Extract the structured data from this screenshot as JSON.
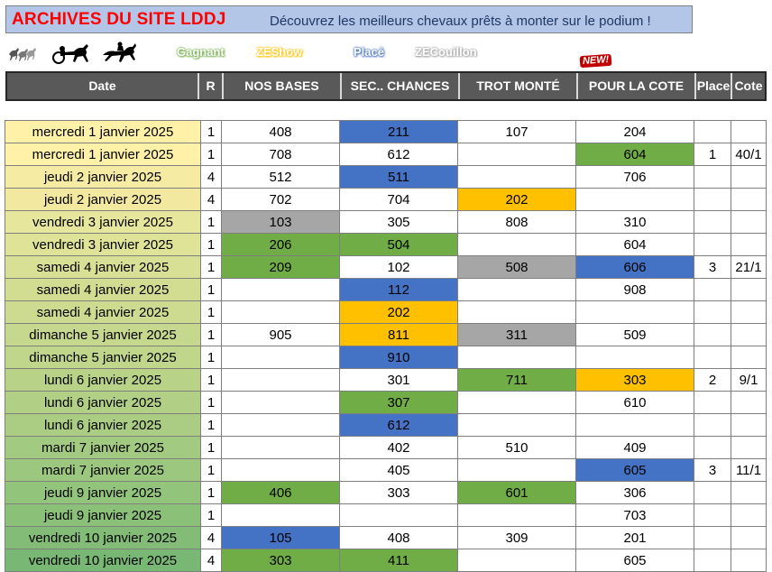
{
  "header": {
    "title": "ARCHIVES DU SITE LDDJ",
    "tagline": "Découvrez les meilleurs chevaux prêts à monter sur le podium !"
  },
  "legend": {
    "gagnant": "Gagnant",
    "zeshow": "ZEShow",
    "place": "Placé",
    "zecouillon": "ZECouillon",
    "new_badge": "NEW!"
  },
  "icons": [
    "horse-group-icon",
    "sulky-horse-icon",
    "jockey-horse-icon"
  ],
  "colors": {
    "green": "#70ad47",
    "blue": "#4472c4",
    "orange": "#ffc000",
    "gray": "#a6a6a6",
    "title_red": "#ff0000",
    "header_bg": "#b4c6e7",
    "table_header_bg": "#595959"
  },
  "table": {
    "columns": [
      "Date",
      "R",
      "NOS BASES",
      "SEC.. CHANCES",
      "TROT MONTÉ",
      "POUR LA COTE",
      "Place",
      "Cote"
    ],
    "rows": [
      {
        "date": "mercredi 1 janvier 2025",
        "r": "1",
        "bases": "408",
        "sec": "211",
        "trot": "107",
        "cote": "204",
        "place": "",
        "odds": "",
        "bg": "#fff2a8",
        "c": [
          "",
          "blue",
          "",
          ""
        ]
      },
      {
        "date": "mercredi 1 janvier 2025",
        "r": "1",
        "bases": "708",
        "sec": "612",
        "trot": "",
        "cote": "604",
        "place": "1",
        "odds": "40/1",
        "bg": "#fff2a8",
        "c": [
          "",
          "",
          "",
          "green"
        ]
      },
      {
        "date": "jeudi 2 janvier 2025",
        "r": "4",
        "bases": "512",
        "sec": "511",
        "trot": "",
        "cote": "706",
        "place": "",
        "odds": "",
        "bg": "#f5eba3",
        "c": [
          "",
          "blue",
          "",
          ""
        ]
      },
      {
        "date": "jeudi 2 janvier 2025",
        "r": "4",
        "bases": "702",
        "sec": "704",
        "trot": "202",
        "cote": "",
        "place": "",
        "odds": "",
        "bg": "#f2e8a0",
        "c": [
          "",
          "",
          "orange",
          ""
        ]
      },
      {
        "date": "vendredi 3 janvier 2025",
        "r": "1",
        "bases": "103",
        "sec": "305",
        "trot": "808",
        "cote": "310",
        "place": "",
        "odds": "",
        "bg": "#e6e69c",
        "c": [
          "gray",
          "",
          "",
          ""
        ]
      },
      {
        "date": "vendredi 3 janvier 2025",
        "r": "1",
        "bases": "206",
        "sec": "504",
        "trot": "",
        "cote": "604",
        "place": "",
        "odds": "",
        "bg": "#dfe398",
        "c": [
          "green",
          "green",
          "",
          ""
        ]
      },
      {
        "date": "samedi 4 janvier 2025",
        "r": "1",
        "bases": "209",
        "sec": "102",
        "trot": "508",
        "cote": "606",
        "place": "3",
        "odds": "21/1",
        "bg": "#d8e095",
        "c": [
          "green",
          "",
          "gray",
          "blue"
        ]
      },
      {
        "date": "samedi 4 janvier 2025",
        "r": "1",
        "bases": "",
        "sec": "112",
        "trot": "",
        "cote": "908",
        "place": "",
        "odds": "",
        "bg": "#d2dd92",
        "c": [
          "",
          "blue",
          "",
          ""
        ]
      },
      {
        "date": "samedi 4 janvier 2025",
        "r": "1",
        "bases": "",
        "sec": "202",
        "trot": "",
        "cote": "",
        "place": "",
        "odds": "",
        "bg": "#ccdb8f",
        "c": [
          "",
          "orange",
          "",
          ""
        ]
      },
      {
        "date": "dimanche 5 janvier 2025",
        "r": "1",
        "bases": "905",
        "sec": "811",
        "trot": "311",
        "cote": "509",
        "place": "",
        "odds": "",
        "bg": "#c6d88d",
        "c": [
          "",
          "orange",
          "gray",
          ""
        ]
      },
      {
        "date": "dimanche 5 janvier 2025",
        "r": "1",
        "bases": "",
        "sec": "910",
        "trot": "",
        "cote": "",
        "place": "",
        "odds": "",
        "bg": "#c0d68b",
        "c": [
          "",
          "blue",
          "",
          ""
        ]
      },
      {
        "date": "lundi 6 janvier 2025",
        "r": "1",
        "bases": "",
        "sec": "301",
        "trot": "711",
        "cote": "303",
        "place": "2",
        "odds": "9/1",
        "bg": "#b8d388",
        "c": [
          "",
          "",
          "green",
          "orange"
        ]
      },
      {
        "date": "lundi 6 janvier 2025",
        "r": "1",
        "bases": "",
        "sec": "307",
        "trot": "",
        "cote": "610",
        "place": "",
        "odds": "",
        "bg": "#b1d085",
        "c": [
          "",
          "green",
          "",
          ""
        ]
      },
      {
        "date": "lundi 6 janvier 2025",
        "r": "1",
        "bases": "",
        "sec": "612",
        "trot": "",
        "cote": "",
        "place": "",
        "odds": "",
        "bg": "#aacd83",
        "c": [
          "",
          "blue",
          "",
          ""
        ]
      },
      {
        "date": "mardi 7 janvier 2025",
        "r": "1",
        "bases": "",
        "sec": "402",
        "trot": "510",
        "cote": "409",
        "place": "",
        "odds": "",
        "bg": "#a3ca81",
        "c": [
          "",
          "",
          "",
          ""
        ]
      },
      {
        "date": "mardi 7 janvier 2025",
        "r": "1",
        "bases": "",
        "sec": "405",
        "trot": "",
        "cote": "605",
        "place": "3",
        "odds": "11/1",
        "bg": "#9cc77e",
        "c": [
          "",
          "",
          "",
          "blue"
        ]
      },
      {
        "date": "jeudi 9 janvier 2025",
        "r": "1",
        "bases": "406",
        "sec": "303",
        "trot": "601",
        "cote": "306",
        "place": "",
        "odds": "",
        "bg": "#93c47c",
        "c": [
          "green",
          "",
          "green",
          ""
        ]
      },
      {
        "date": "jeudi 9 janvier 2025",
        "r": "1",
        "bases": "",
        "sec": "",
        "trot": "",
        "cote": "703",
        "place": "",
        "odds": "",
        "bg": "#8bc079",
        "c": [
          "",
          "",
          "",
          ""
        ]
      },
      {
        "date": "vendredi 10 janvier 2025",
        "r": "4",
        "bases": "105",
        "sec": "408",
        "trot": "309",
        "cote": "201",
        "place": "",
        "odds": "",
        "bg": "#82bc76",
        "c": [
          "blue",
          "",
          "",
          ""
        ]
      },
      {
        "date": "vendredi 10 janvier 2025",
        "r": "4",
        "bases": "303",
        "sec": "411",
        "trot": "",
        "cote": "605",
        "place": "",
        "odds": "",
        "bg": "#79b874",
        "c": [
          "green",
          "green",
          "",
          ""
        ]
      }
    ]
  }
}
